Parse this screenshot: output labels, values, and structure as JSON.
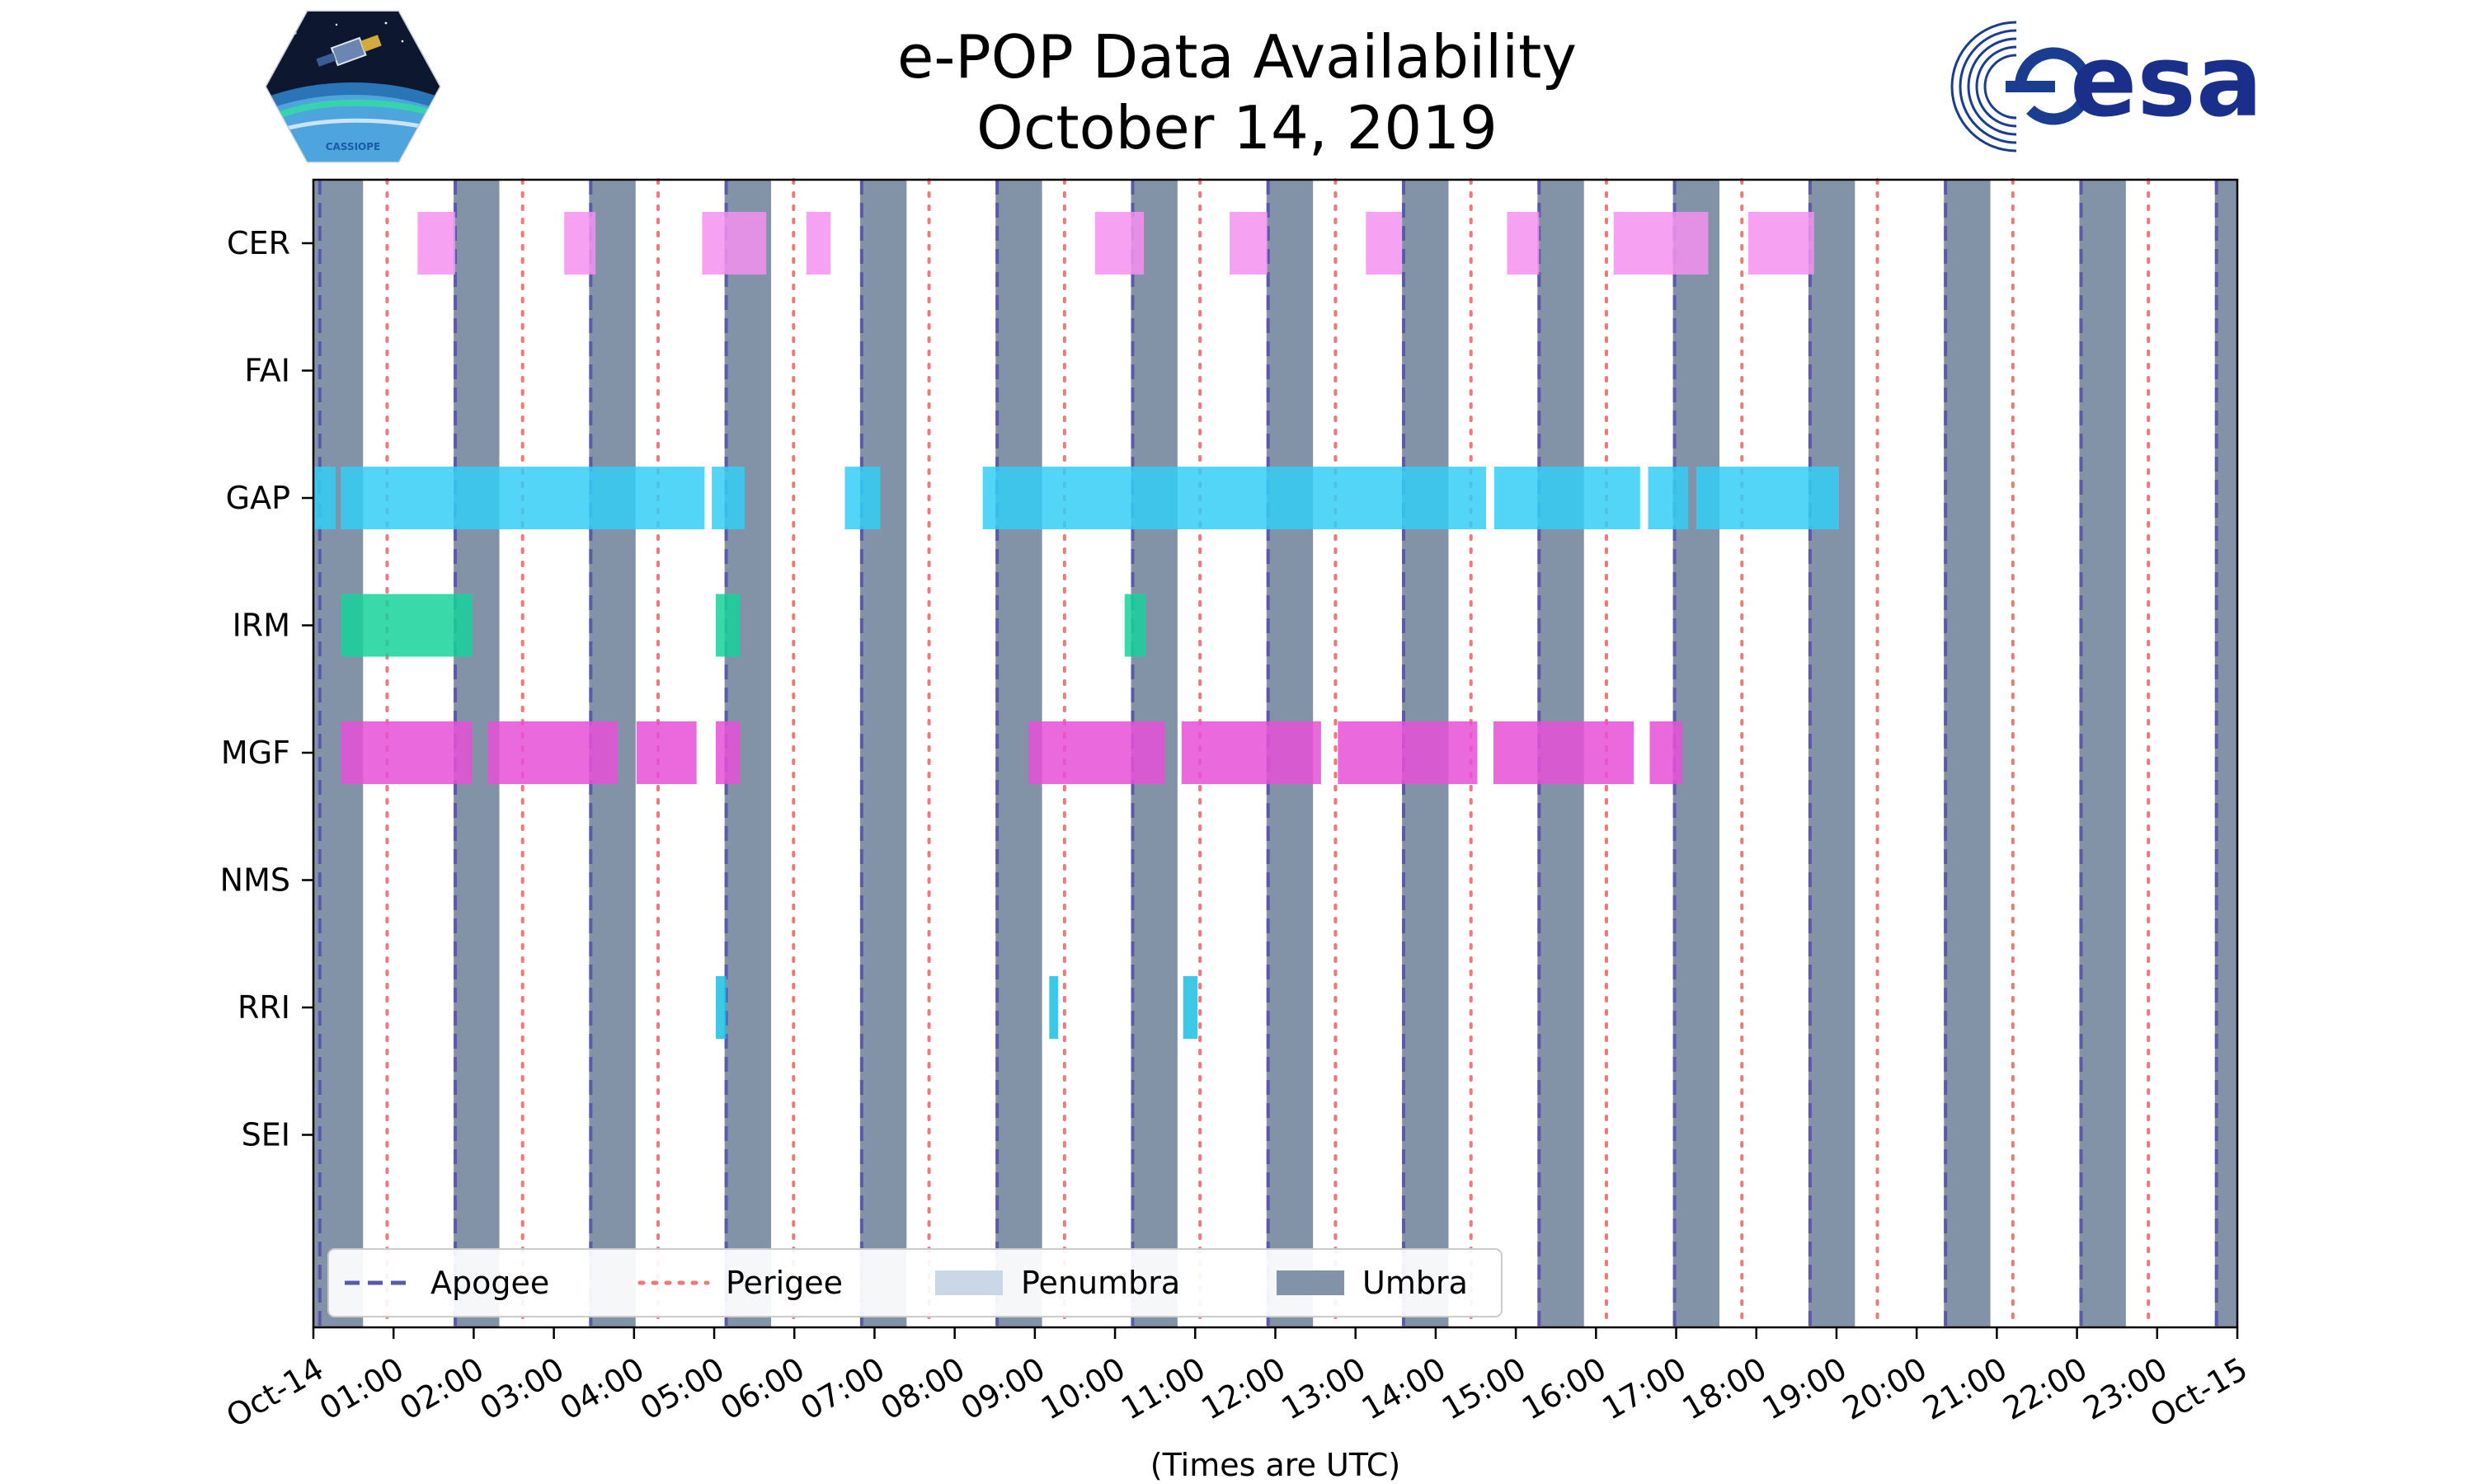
{
  "header": {
    "title_line1": "e-POP Data Availability",
    "title_line2": "October 14, 2019"
  },
  "logos": {
    "left": {
      "icon": "cassiope-mission-badge",
      "text": "CASSIOPE"
    },
    "right": {
      "icon": "esa-logo",
      "text": "esa"
    }
  },
  "chart_data": {
    "type": "timeline",
    "xlabel": "(Times are UTC)",
    "x_range_hours": [
      0,
      24
    ],
    "x_tick_labels": [
      "Oct-14",
      "01:00",
      "02:00",
      "03:00",
      "04:00",
      "05:00",
      "06:00",
      "07:00",
      "08:00",
      "09:00",
      "10:00",
      "11:00",
      "12:00",
      "13:00",
      "14:00",
      "15:00",
      "16:00",
      "17:00",
      "18:00",
      "19:00",
      "20:00",
      "21:00",
      "22:00",
      "23:00",
      "Oct-15"
    ],
    "instruments": [
      "CER",
      "FAI",
      "GAP",
      "IRM",
      "MGF",
      "NMS",
      "RRI",
      "SEI"
    ],
    "legend": {
      "placement": "lower-left",
      "entries": [
        {
          "label": "Apogee",
          "style": "dashed",
          "color": "#5a5aa8"
        },
        {
          "label": "Perigee",
          "style": "dotted",
          "color": "#f07878"
        },
        {
          "label": "Penumbra",
          "style": "patch",
          "color": "#c9d7e6"
        },
        {
          "label": "Umbra",
          "style": "patch",
          "color": "#8393a7"
        }
      ]
    },
    "apogee_hours": [
      0.08,
      1.77,
      3.46,
      5.15,
      6.84,
      8.53,
      10.22,
      11.91,
      13.6,
      15.29,
      16.98,
      18.67,
      20.36,
      22.05,
      23.74
    ],
    "perigee_hours": [
      0.92,
      2.61,
      4.3,
      5.99,
      7.68,
      9.37,
      11.06,
      12.75,
      14.44,
      16.13,
      17.82,
      19.51,
      21.2,
      22.89
    ],
    "umbra_intervals": [
      [
        0.0,
        0.62
      ],
      [
        1.75,
        2.32
      ],
      [
        3.44,
        4.02
      ],
      [
        5.13,
        5.71
      ],
      [
        6.82,
        7.4
      ],
      [
        8.51,
        9.09
      ],
      [
        10.2,
        10.78
      ],
      [
        11.89,
        12.47
      ],
      [
        13.58,
        14.16
      ],
      [
        15.27,
        15.85
      ],
      [
        16.96,
        17.54
      ],
      [
        18.65,
        19.23
      ],
      [
        20.34,
        20.92
      ],
      [
        22.03,
        22.61
      ],
      [
        23.72,
        24.0
      ]
    ],
    "colors": {
      "CER": "#f490ee",
      "GAP": "#34cef6",
      "IRM": "#17d29a",
      "MGF": "#e650d8",
      "RRI": "#19bfe3",
      "umbra": "#8393a7",
      "apogee": "#5a5aa8",
      "perigee": "#f07878"
    },
    "data_intervals": {
      "CER": [
        [
          1.3,
          1.77
        ],
        [
          3.13,
          3.52
        ],
        [
          4.85,
          5.65
        ],
        [
          6.15,
          6.45
        ],
        [
          9.75,
          10.36
        ],
        [
          11.43,
          11.9
        ],
        [
          13.13,
          13.58
        ],
        [
          14.89,
          15.29
        ],
        [
          16.22,
          17.4
        ],
        [
          17.9,
          18.72
        ]
      ],
      "FAI": [],
      "GAP": [
        [
          0.0,
          0.28
        ],
        [
          0.34,
          4.88
        ],
        [
          4.97,
          5.38
        ],
        [
          6.63,
          7.07
        ],
        [
          8.35,
          14.63
        ],
        [
          14.73,
          16.55
        ],
        [
          16.65,
          17.15
        ],
        [
          17.25,
          19.03
        ]
      ],
      "IRM": [
        [
          0.34,
          1.98
        ],
        [
          5.02,
          5.32
        ],
        [
          10.12,
          10.38
        ]
      ],
      "MGF": [
        [
          0.34,
          1.98
        ],
        [
          2.18,
          3.8
        ],
        [
          4.03,
          4.78
        ],
        [
          5.02,
          5.32
        ],
        [
          8.92,
          10.62
        ],
        [
          10.83,
          12.57
        ],
        [
          12.78,
          14.52
        ],
        [
          14.72,
          16.47
        ],
        [
          16.67,
          17.08
        ]
      ],
      "NMS": [],
      "RRI": [
        [
          5.02,
          5.15
        ],
        [
          9.18,
          9.29
        ],
        [
          10.85,
          11.03
        ]
      ],
      "SEI": []
    }
  }
}
